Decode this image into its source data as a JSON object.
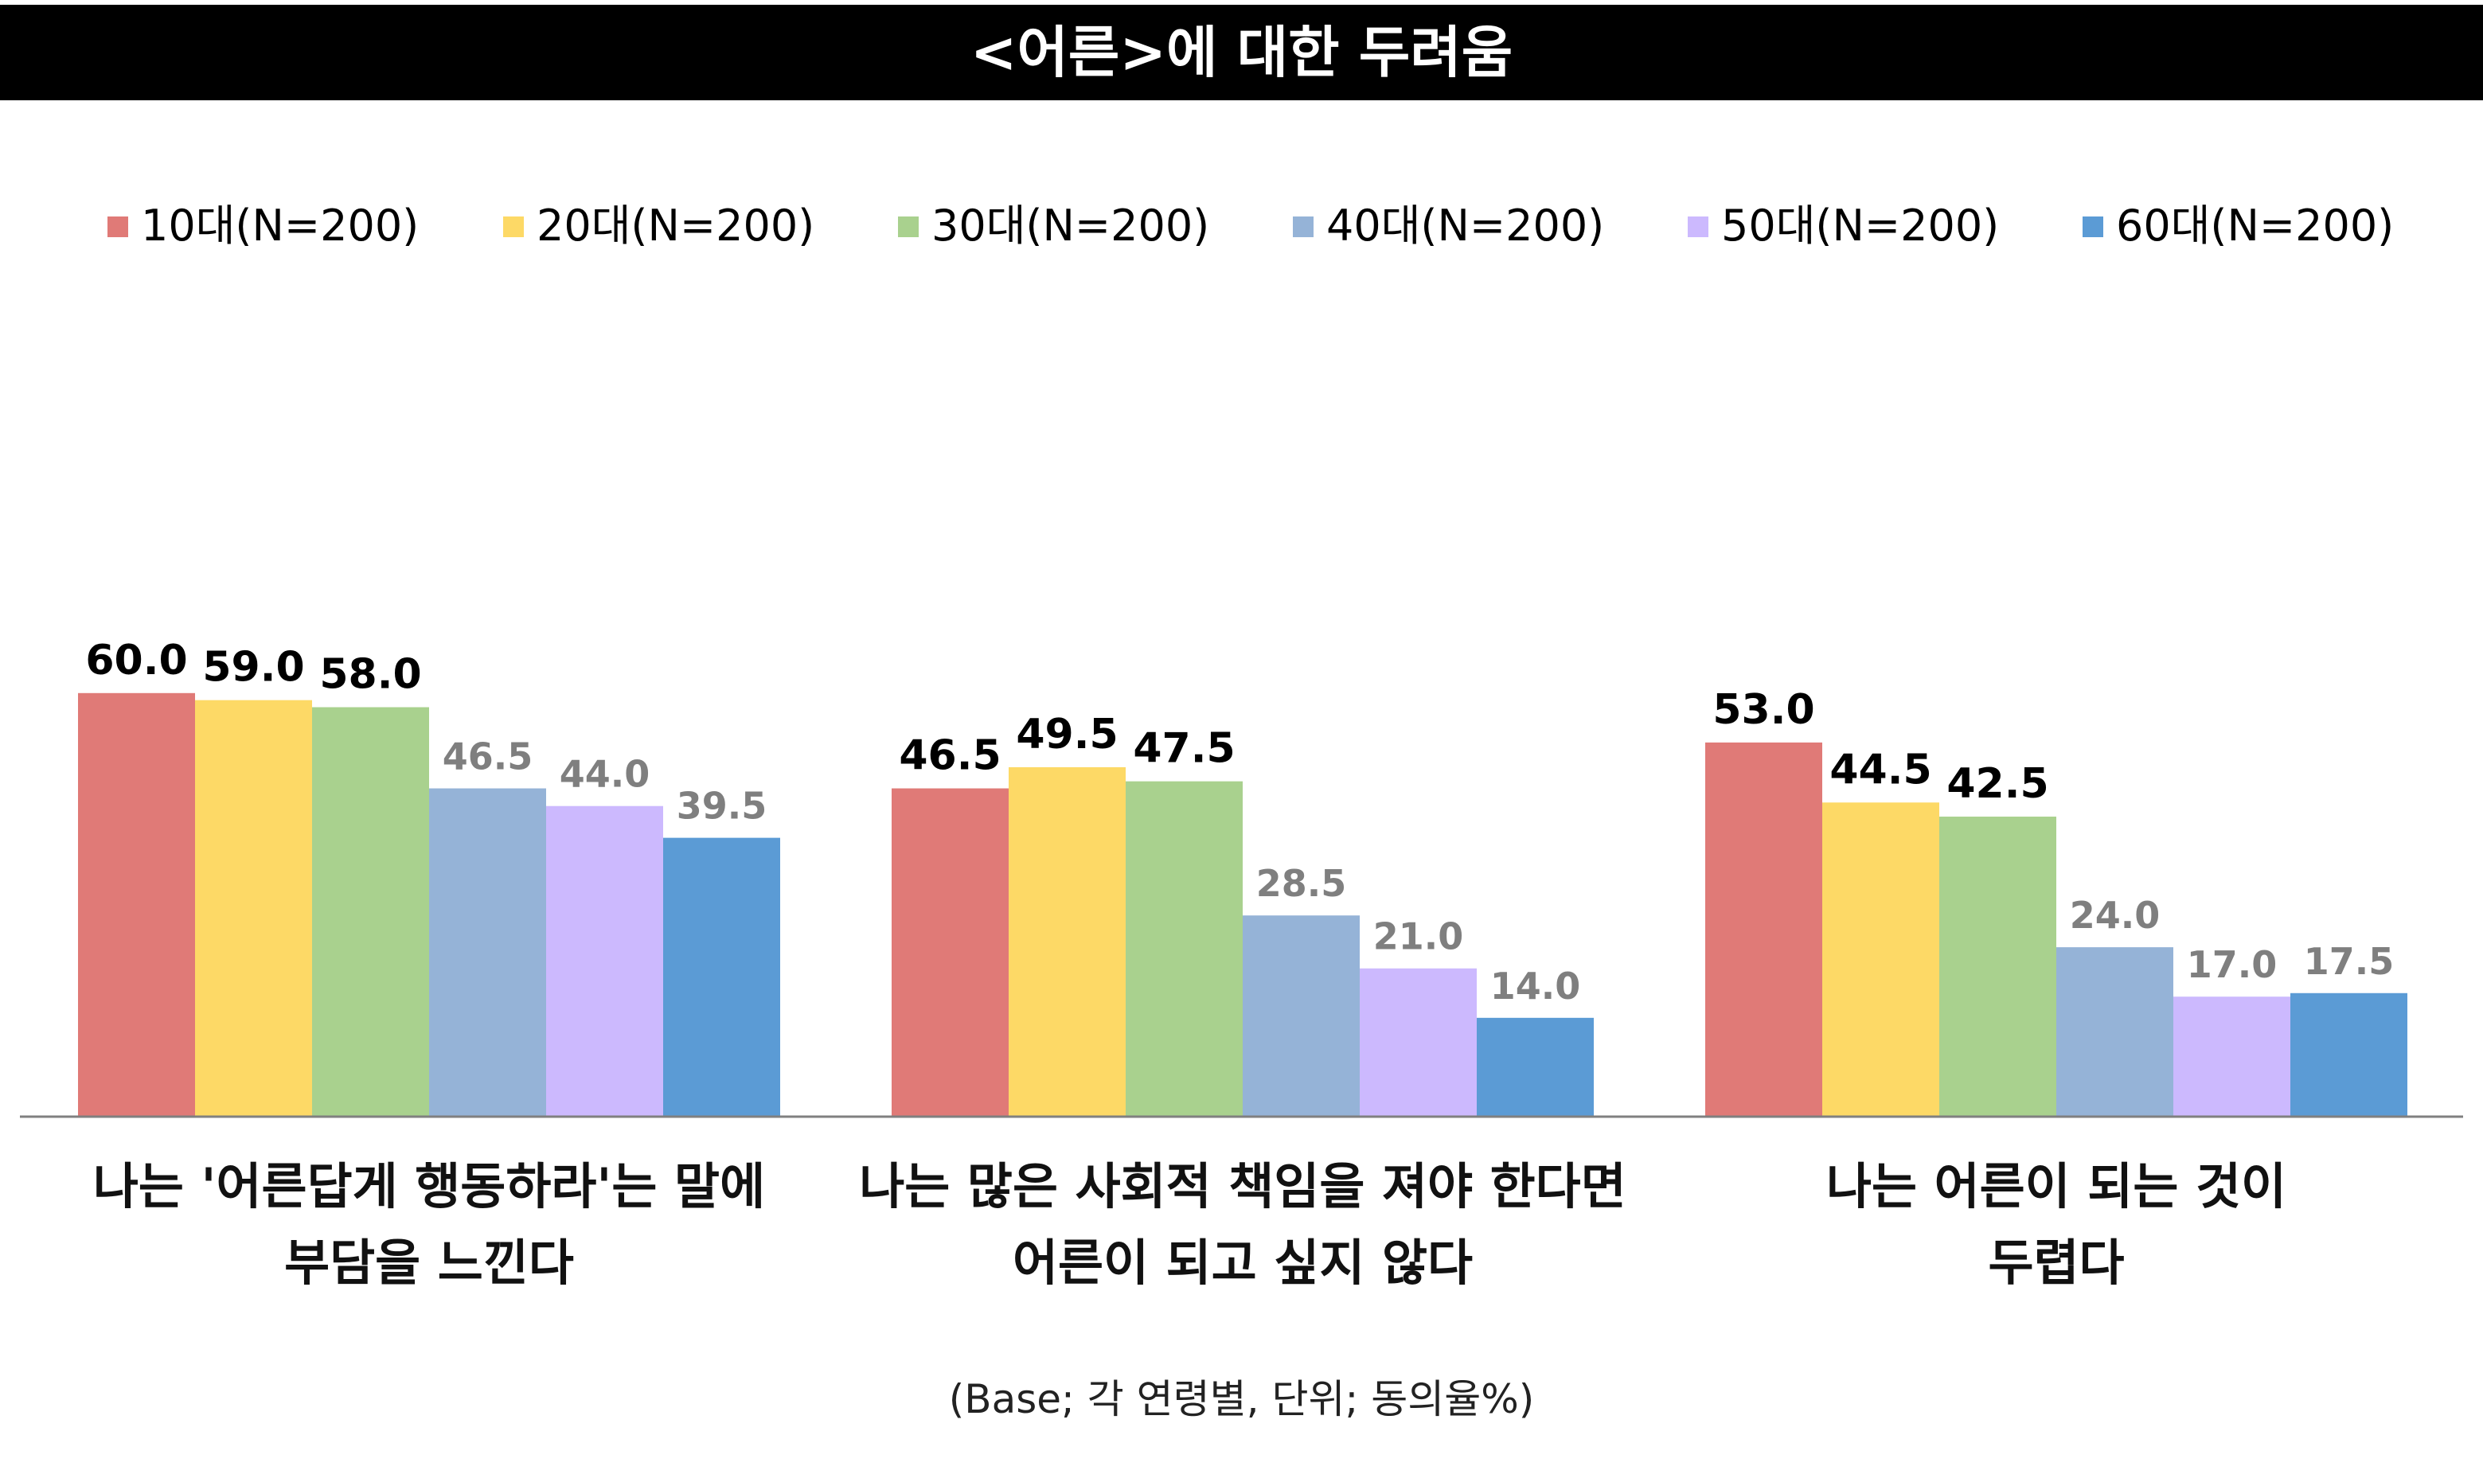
{
  "title": "<어른>에 대한 두려움",
  "footnote": "(Base; 각 연령별, 단위; 동의율%)",
  "chart_data": {
    "type": "bar",
    "categories": [
      [
        "나는 '어른답게 행동하라'는 말에",
        "부담을 느낀다"
      ],
      [
        "나는 많은 사회적 책임을 져야 한다면",
        "어른이 되고 싶지 않다"
      ],
      [
        "나는 어른이 되는 것이",
        "두렵다"
      ]
    ],
    "series": [
      {
        "name": "10대(N=200)",
        "color": "#E07A77",
        "values": [
          60.0,
          46.5,
          53.0
        ]
      },
      {
        "name": "20대(N=200)",
        "color": "#FDD966",
        "values": [
          59.0,
          49.5,
          44.5
        ]
      },
      {
        "name": "30대(N=200)",
        "color": "#A9D18E",
        "values": [
          58.0,
          47.5,
          42.5
        ]
      },
      {
        "name": "40대(N=200)",
        "color": "#95B3D7",
        "values": [
          46.5,
          28.5,
          24.0
        ]
      },
      {
        "name": "50대(N=200)",
        "color": "#CCB9FE",
        "values": [
          44.0,
          21.0,
          17.0
        ]
      },
      {
        "name": "60대(N=200)",
        "color": "#5B9BD5",
        "values": [
          39.5,
          14.0,
          17.5
        ]
      }
    ],
    "label_colors": {
      "highlight": "#000000",
      "muted": "#7F7F7F"
    },
    "highlighted_series": 3,
    "legend_position": "top",
    "grid": false,
    "ylim": [
      0,
      60
    ]
  }
}
